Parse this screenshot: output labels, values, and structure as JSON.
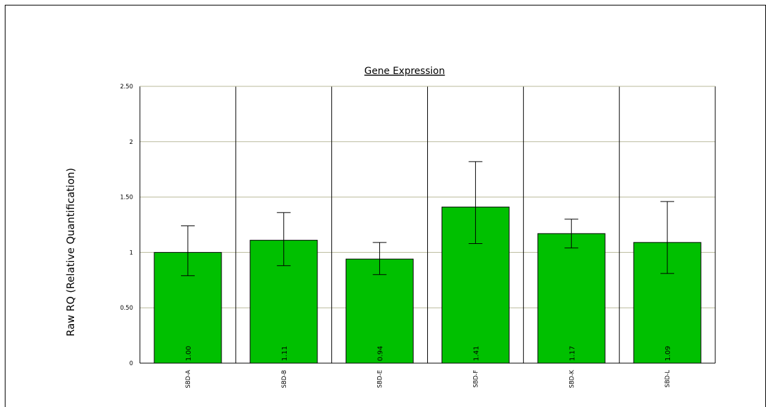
{
  "chart_data": {
    "type": "bar",
    "title": "Gene Expression",
    "xlabel": "",
    "ylabel": "Raw RQ (Relative Quantification)",
    "ylim": [
      0,
      2.5
    ],
    "yticks": [
      {
        "value": 0,
        "label": "0"
      },
      {
        "value": 0.5,
        "label": "0.50"
      },
      {
        "value": 1,
        "label": "1"
      },
      {
        "value": 1.5,
        "label": "1.50"
      },
      {
        "value": 2,
        "label": "2"
      },
      {
        "value": 2.5,
        "label": "2.50"
      }
    ],
    "categories": [
      "SBD-A",
      "SBD-B",
      "SBD-E",
      "SBD-F",
      "SBD-K",
      "SBD-L"
    ],
    "values": [
      1.0,
      1.11,
      0.94,
      1.41,
      1.17,
      1.09
    ],
    "value_labels": [
      "1.00",
      "1.11",
      "0.94",
      "1.41",
      "1.17",
      "1.09"
    ],
    "error_low": [
      0.79,
      0.88,
      0.8,
      1.08,
      1.04,
      0.81
    ],
    "error_high": [
      1.24,
      1.36,
      1.09,
      1.82,
      1.3,
      1.46
    ],
    "grid": true,
    "colors": {
      "bar": "#00c000",
      "bar_edge": "#000000",
      "grid": "#b8b89a",
      "axis": "#000000"
    }
  }
}
